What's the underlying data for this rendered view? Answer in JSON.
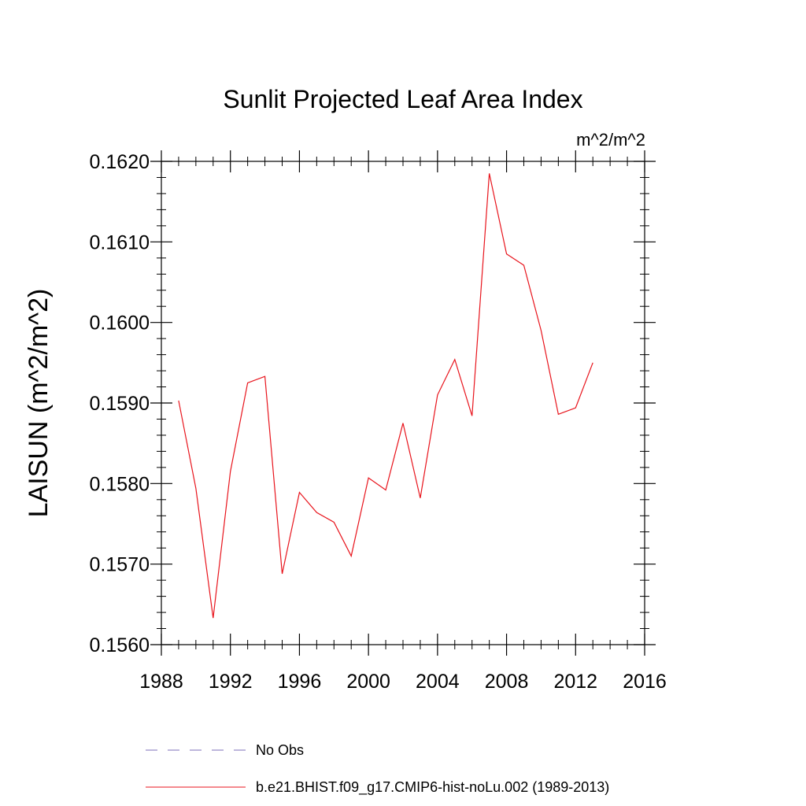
{
  "chart_data": {
    "type": "line",
    "title": "Sunlit Projected Leaf Area Index",
    "units": "m^2/m^2",
    "ylabel": "LAISUN  (m^2/m^2)",
    "xlabel": "",
    "xlim": [
      1988,
      2016
    ],
    "ylim": [
      0.156,
      0.162
    ],
    "xticks": [
      "1988",
      "1992",
      "1996",
      "2000",
      "2004",
      "2008",
      "2012",
      "2016"
    ],
    "yticks": [
      "0.1560",
      "0.1570",
      "0.1580",
      "0.1590",
      "0.1600",
      "0.1610",
      "0.1620"
    ],
    "grid": false,
    "legend_position": "bottom",
    "series": [
      {
        "name": "No Obs",
        "color": "#7b6fb8",
        "dash": "dashed",
        "x": [],
        "y": []
      },
      {
        "name": "b.e21.BHIST.f09_g17.CMIP6-hist-noLu.002 (1989-2013)",
        "color": "#e8141c",
        "dash": "solid",
        "x": [
          1989,
          1990,
          1991,
          1992,
          1993,
          1994,
          1995,
          1996,
          1997,
          1998,
          1999,
          2000,
          2001,
          2002,
          2003,
          2004,
          2005,
          2006,
          2007,
          2008,
          2009,
          2010,
          2011,
          2012,
          2013
        ],
        "y": [
          0.15903,
          0.15794,
          0.15633,
          0.15815,
          0.15925,
          0.15933,
          0.15688,
          0.15789,
          0.15764,
          0.15752,
          0.1571,
          0.15807,
          0.15792,
          0.15875,
          0.15782,
          0.1591,
          0.15954,
          0.15884,
          0.16185,
          0.16085,
          0.16071,
          0.1599,
          0.15886,
          0.15894,
          0.1595
        ]
      }
    ]
  }
}
